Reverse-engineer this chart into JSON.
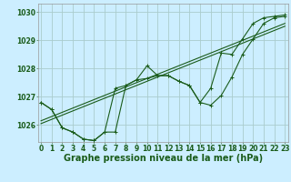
{
  "title": "Graphe pression niveau de la mer (hPa)",
  "background_color": "#cceeff",
  "grid_color": "#aacccc",
  "line_color": "#1a5c1a",
  "x_ticks": [
    0,
    1,
    2,
    3,
    4,
    5,
    6,
    7,
    8,
    9,
    10,
    11,
    12,
    13,
    14,
    15,
    16,
    17,
    18,
    19,
    20,
    21,
    22,
    23
  ],
  "ylim": [
    1025.4,
    1030.3
  ],
  "yticks": [
    1026,
    1027,
    1028,
    1029,
    1030
  ],
  "series1": [
    1026.8,
    1026.55,
    1025.9,
    1025.75,
    1025.5,
    1025.45,
    1025.75,
    1025.75,
    1027.4,
    1027.6,
    1028.1,
    1027.75,
    1027.75,
    1027.55,
    1027.4,
    1026.8,
    1026.7,
    1027.05,
    1027.7,
    1028.5,
    1029.05,
    1029.6,
    1029.8,
    1029.85
  ],
  "series2": [
    1026.8,
    1026.55,
    1025.9,
    1025.75,
    1025.5,
    1025.45,
    1025.75,
    1027.3,
    1027.4,
    1027.6,
    1027.65,
    1027.75,
    1027.75,
    1027.55,
    1027.4,
    1026.8,
    1027.3,
    1028.55,
    1028.5,
    1029.05,
    1029.6,
    1029.8,
    1029.85,
    1029.9
  ],
  "trend1": [
    1026.15,
    1026.3,
    1026.45,
    1026.6,
    1026.75,
    1026.9,
    1027.05,
    1027.2,
    1027.35,
    1027.5,
    1027.65,
    1027.8,
    1027.95,
    1028.1,
    1028.25,
    1028.4,
    1028.55,
    1028.7,
    1028.85,
    1029.0,
    1029.15,
    1029.3,
    1029.45,
    1029.6
  ],
  "trend2": [
    1026.05,
    1026.2,
    1026.35,
    1026.5,
    1026.65,
    1026.8,
    1026.95,
    1027.1,
    1027.25,
    1027.4,
    1027.55,
    1027.7,
    1027.85,
    1028.0,
    1028.15,
    1028.3,
    1028.45,
    1028.6,
    1028.75,
    1028.9,
    1029.05,
    1029.2,
    1029.35,
    1029.5
  ],
  "tick_fontsize": 5.5,
  "label_fontsize": 7.0
}
